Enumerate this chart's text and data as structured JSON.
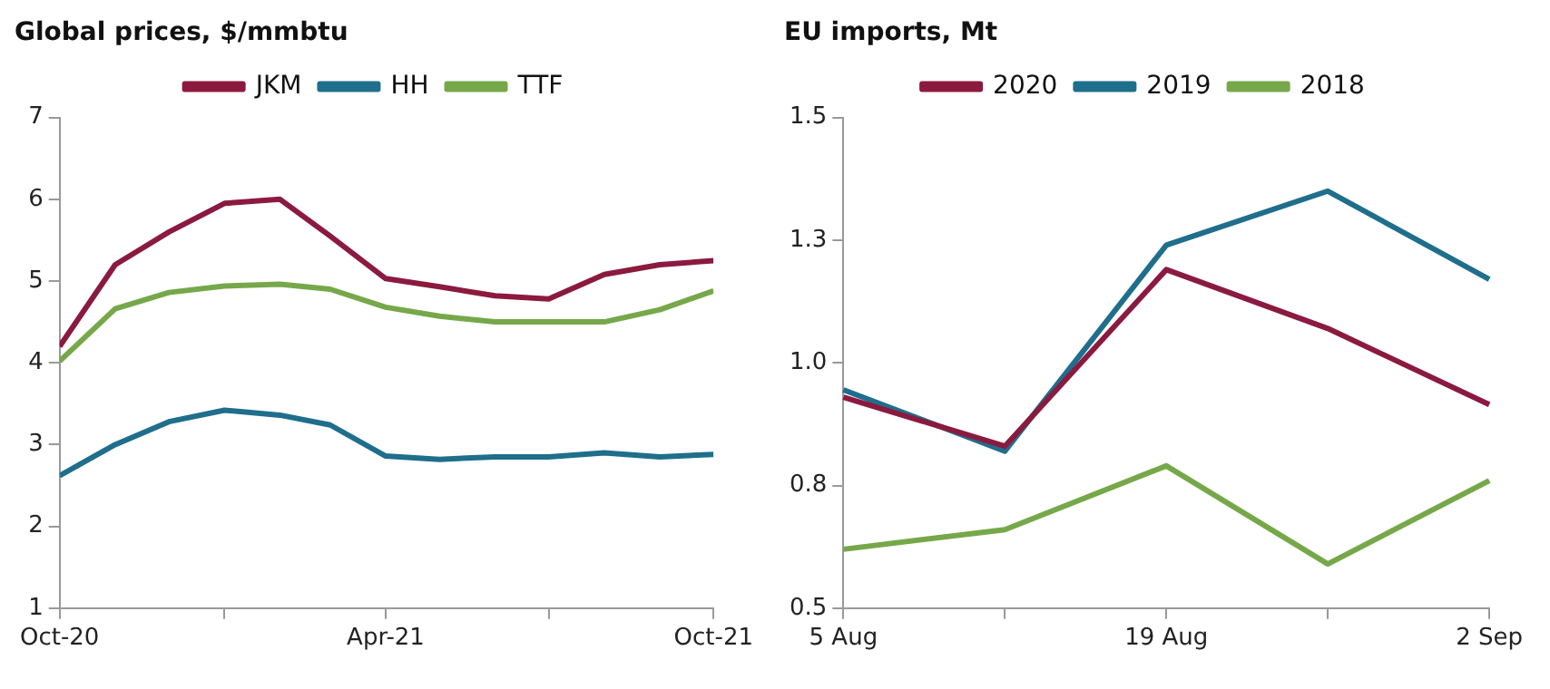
{
  "chart_data": [
    {
      "type": "line",
      "title": "Global prices, $/mmbtu",
      "x": [
        "2020-10",
        "2020-11",
        "2020-12",
        "2021-01",
        "2021-02",
        "2021-03",
        "2021-04",
        "2021-05",
        "2021-06",
        "2021-07",
        "2021-08",
        "2021-09",
        "2021-10"
      ],
      "xlim": [
        "2020-10",
        "2021-10"
      ],
      "xticks": [
        {
          "value": "2020-10",
          "label": "Oct-20"
        },
        {
          "value": "2021-01",
          "label": null
        },
        {
          "value": "2021-04",
          "label": "Apr-21"
        },
        {
          "value": "2021-07",
          "label": null
        },
        {
          "value": "2021-10",
          "label": "Oct-21"
        }
      ],
      "ylim": [
        1,
        7
      ],
      "yticks": [
        1,
        2,
        3,
        4,
        5,
        6,
        7
      ],
      "legend": "top",
      "marker": "none",
      "series": [
        {
          "name": "JKM",
          "color": "#8b1a3f",
          "values": [
            4.2,
            5.2,
            5.6,
            5.95,
            6.0,
            5.55,
            5.03,
            4.93,
            4.82,
            4.78,
            5.08,
            5.2,
            5.25
          ]
        },
        {
          "name": "HH",
          "color": "#1f6e8c",
          "values": [
            2.62,
            3.0,
            3.28,
            3.42,
            3.36,
            3.24,
            2.86,
            2.82,
            2.85,
            2.85,
            2.9,
            2.85,
            2.88
          ]
        },
        {
          "name": "TTF",
          "color": "#76a84a",
          "values": [
            4.02,
            4.66,
            4.86,
            4.94,
            4.96,
            4.9,
            4.68,
            4.57,
            4.5,
            4.5,
            4.5,
            4.65,
            4.88
          ]
        }
      ]
    },
    {
      "type": "line",
      "title": "EU imports, Mt",
      "categories": [
        "5 Aug",
        null,
        "19 Aug",
        null,
        "2 Sep"
      ],
      "ylim": [
        0.5,
        1.5
      ],
      "yticks": [
        {
          "value": 0.5,
          "label": "0.5"
        },
        {
          "value": 0.75,
          "label": "0.8"
        },
        {
          "value": 1.0,
          "label": "1.0"
        },
        {
          "value": 1.25,
          "label": "1.3"
        },
        {
          "value": 1.5,
          "label": "1.5"
        }
      ],
      "legend": "top",
      "marker": "none",
      "series": [
        {
          "name": "2020",
          "color": "#8b1a3f",
          "values": [
            0.93,
            0.83,
            1.19,
            1.07,
            0.915
          ]
        },
        {
          "name": "2019",
          "color": "#1f6e8c",
          "values": [
            0.945,
            0.82,
            1.24,
            1.35,
            1.17
          ]
        },
        {
          "name": "2018",
          "color": "#76a84a",
          "values": [
            0.62,
            0.66,
            0.79,
            0.59,
            0.76
          ]
        }
      ]
    }
  ]
}
